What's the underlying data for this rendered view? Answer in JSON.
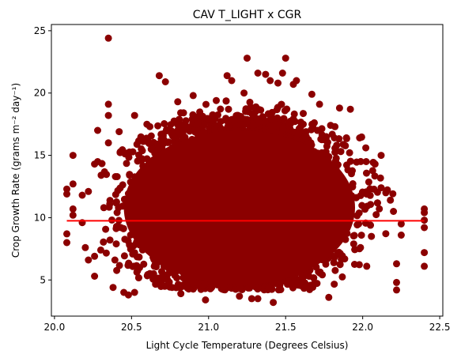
{
  "chart_data": {
    "type": "scatter",
    "title": "CAV T_LIGHT x CGR",
    "xlabel": "Light Cycle Temperature (Degrees Celsius)",
    "ylabel": "Crop Growth Rate (grams m⁻² day⁻¹)",
    "xlim": [
      19.98,
      22.52
    ],
    "ylim": [
      2.1,
      25.5
    ],
    "x_ticks": [
      20.0,
      20.5,
      21.0,
      21.5,
      22.0,
      22.5
    ],
    "x_tick_labels": [
      "20.0",
      "20.5",
      "21.0",
      "21.5",
      "22.0",
      "22.5"
    ],
    "y_ticks": [
      5,
      10,
      15,
      20,
      25
    ],
    "y_tick_labels": [
      "5",
      "10",
      "15",
      "20",
      "25"
    ],
    "grid": false,
    "colors": {
      "points": "#8b0000",
      "fit_line": "#ff0000"
    },
    "dense_region": {
      "description": "dense cloud of points roughly spanning x 20.4-22.0, y 4-18",
      "x_center": 21.2,
      "y_center": 9.8
    },
    "points": [
      [
        20.08,
        12.3
      ],
      [
        20.08,
        11.9
      ],
      [
        20.08,
        8.7
      ],
      [
        20.08,
        8.0
      ],
      [
        20.12,
        15.0
      ],
      [
        20.12,
        12.7
      ],
      [
        20.12,
        10.7
      ],
      [
        20.12,
        10.2
      ],
      [
        20.18,
        11.8
      ],
      [
        20.18,
        9.6
      ],
      [
        20.2,
        7.6
      ],
      [
        20.22,
        12.1
      ],
      [
        20.22,
        6.6
      ],
      [
        20.26,
        14.3
      ],
      [
        20.26,
        6.9
      ],
      [
        20.26,
        5.3
      ],
      [
        20.28,
        14.5
      ],
      [
        20.28,
        17.0
      ],
      [
        20.3,
        7.4
      ],
      [
        20.32,
        10.8
      ],
      [
        20.35,
        24.4
      ],
      [
        20.35,
        19.1
      ],
      [
        20.35,
        18.2
      ],
      [
        20.35,
        16.0
      ],
      [
        20.38,
        4.4
      ],
      [
        20.42,
        16.9
      ],
      [
        20.45,
        4.0
      ],
      [
        20.48,
        3.8
      ],
      [
        20.52,
        4.0
      ],
      [
        20.52,
        18.2
      ],
      [
        20.6,
        17.5
      ],
      [
        20.68,
        21.4
      ],
      [
        20.72,
        20.9
      ],
      [
        20.8,
        19.3
      ],
      [
        20.82,
        3.9
      ],
      [
        20.9,
        19.8
      ],
      [
        20.98,
        3.4
      ],
      [
        21.05,
        19.4
      ],
      [
        21.12,
        21.4
      ],
      [
        21.15,
        21.0
      ],
      [
        21.2,
        3.7
      ],
      [
        21.23,
        20.0
      ],
      [
        21.25,
        22.8
      ],
      [
        21.28,
        3.5
      ],
      [
        21.32,
        3.5
      ],
      [
        21.32,
        21.6
      ],
      [
        21.37,
        21.5
      ],
      [
        21.4,
        21.0
      ],
      [
        21.42,
        3.2
      ],
      [
        21.45,
        20.8
      ],
      [
        21.48,
        21.6
      ],
      [
        21.5,
        22.8
      ],
      [
        21.55,
        20.7
      ],
      [
        21.57,
        21.0
      ],
      [
        21.67,
        19.9
      ],
      [
        21.72,
        19.1
      ],
      [
        21.78,
        3.6
      ],
      [
        21.82,
        17.3
      ],
      [
        21.85,
        18.8
      ],
      [
        21.92,
        18.7
      ],
      [
        21.98,
        16.4
      ],
      [
        22.02,
        15.6
      ],
      [
        22.08,
        14.3
      ],
      [
        22.12,
        15.0
      ],
      [
        22.12,
        12.4
      ],
      [
        22.15,
        12.0
      ],
      [
        22.18,
        11.4
      ],
      [
        22.2,
        10.5
      ],
      [
        22.22,
        6.3
      ],
      [
        22.22,
        4.8
      ],
      [
        22.22,
        4.2
      ],
      [
        22.25,
        9.5
      ],
      [
        22.25,
        8.6
      ],
      [
        22.4,
        10.7
      ],
      [
        22.4,
        10.4
      ],
      [
        22.4,
        9.8
      ],
      [
        22.4,
        9.2
      ],
      [
        22.4,
        7.2
      ],
      [
        22.4,
        6.1
      ]
    ],
    "fit_line": {
      "x": [
        20.08,
        22.4
      ],
      "y": [
        9.75,
        9.75
      ]
    }
  }
}
